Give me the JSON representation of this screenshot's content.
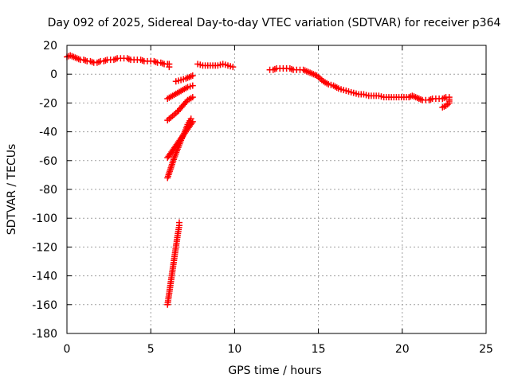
{
  "chart_data": {
    "type": "scatter",
    "title": "Day 092 of 2025, Sidereal Day-to-day VTEC variation (SDTVAR) for receiver p364",
    "xlabel": "GPS time / hours",
    "ylabel": "SDTVAR / TECUs",
    "xlim": [
      0,
      25
    ],
    "ylim": [
      -180,
      20
    ],
    "xticks": [
      0,
      5,
      10,
      15,
      20,
      25
    ],
    "yticks": [
      20,
      0,
      -20,
      -40,
      -60,
      -80,
      -100,
      -120,
      -140,
      -160,
      -180
    ],
    "grid": true,
    "marker": "plus",
    "color": "#ff0000",
    "series": [
      {
        "name": "segment-1",
        "points": [
          [
            0.0,
            12
          ],
          [
            0.2,
            13
          ],
          [
            0.4,
            12
          ],
          [
            0.6,
            11
          ],
          [
            0.8,
            10
          ],
          [
            1.0,
            10
          ],
          [
            1.2,
            9
          ],
          [
            1.4,
            9
          ],
          [
            1.6,
            8
          ],
          [
            1.8,
            8
          ],
          [
            2.0,
            9
          ],
          [
            2.2,
            9
          ],
          [
            2.4,
            10
          ],
          [
            2.6,
            10
          ],
          [
            2.8,
            10
          ],
          [
            3.0,
            11
          ],
          [
            3.2,
            11
          ],
          [
            3.4,
            11
          ],
          [
            3.6,
            11
          ],
          [
            3.8,
            10
          ],
          [
            4.0,
            10
          ],
          [
            4.2,
            10
          ],
          [
            4.4,
            10
          ],
          [
            4.6,
            9
          ],
          [
            4.8,
            9
          ],
          [
            5.0,
            9
          ],
          [
            5.2,
            9
          ],
          [
            5.4,
            8
          ],
          [
            5.6,
            8
          ],
          [
            5.8,
            7
          ],
          [
            6.0,
            7
          ],
          [
            6.1,
            7
          ],
          [
            6.1,
            5
          ]
        ]
      },
      {
        "name": "segment-2",
        "points": [
          [
            6.5,
            -5
          ],
          [
            6.8,
            -4
          ],
          [
            7.1,
            -3
          ],
          [
            7.3,
            -2
          ],
          [
            7.5,
            -1
          ]
        ]
      },
      {
        "name": "segment-3",
        "points": [
          [
            6.0,
            -17
          ],
          [
            6.3,
            -15
          ],
          [
            6.6,
            -13
          ],
          [
            6.9,
            -11
          ],
          [
            7.2,
            -9
          ],
          [
            7.5,
            -8
          ]
        ]
      },
      {
        "name": "segment-4",
        "points": [
          [
            6.0,
            -32
          ],
          [
            6.3,
            -29
          ],
          [
            6.6,
            -26
          ],
          [
            6.9,
            -22
          ],
          [
            7.2,
            -18
          ],
          [
            7.5,
            -16
          ]
        ]
      },
      {
        "name": "segment-5",
        "points": [
          [
            6.0,
            -58
          ],
          [
            6.3,
            -53
          ],
          [
            6.6,
            -48
          ],
          [
            6.9,
            -43
          ],
          [
            7.2,
            -38
          ],
          [
            7.5,
            -33
          ]
        ]
      },
      {
        "name": "segment-6",
        "points": [
          [
            6.0,
            -72
          ],
          [
            6.2,
            -65
          ],
          [
            6.4,
            -58
          ],
          [
            6.6,
            -52
          ],
          [
            6.8,
            -46
          ],
          [
            7.0,
            -41
          ],
          [
            7.2,
            -35
          ],
          [
            7.4,
            -31
          ]
        ]
      },
      {
        "name": "segment-7",
        "points": [
          [
            6.0,
            -160
          ],
          [
            6.1,
            -152
          ],
          [
            6.2,
            -144
          ],
          [
            6.3,
            -136
          ],
          [
            6.4,
            -128
          ],
          [
            6.5,
            -120
          ],
          [
            6.6,
            -112
          ],
          [
            6.7,
            -105
          ],
          [
            6.7,
            -103
          ]
        ]
      },
      {
        "name": "segment-8",
        "points": [
          [
            7.8,
            7
          ],
          [
            8.1,
            6
          ],
          [
            8.4,
            6
          ],
          [
            8.7,
            6
          ],
          [
            9.0,
            6
          ],
          [
            9.3,
            7
          ],
          [
            9.6,
            6
          ],
          [
            9.9,
            5
          ]
        ]
      },
      {
        "name": "segment-9",
        "points": [
          [
            12.1,
            3
          ],
          [
            12.3,
            3
          ],
          [
            12.5,
            4
          ],
          [
            12.7,
            4
          ],
          [
            12.9,
            4
          ],
          [
            13.1,
            4
          ],
          [
            13.3,
            4
          ],
          [
            13.5,
            3
          ],
          [
            13.7,
            3
          ],
          [
            13.9,
            3
          ],
          [
            14.1,
            3
          ],
          [
            14.3,
            2
          ],
          [
            14.5,
            1
          ],
          [
            14.7,
            0
          ],
          [
            14.9,
            -1
          ],
          [
            15.1,
            -3
          ],
          [
            15.3,
            -5
          ],
          [
            15.6,
            -7
          ],
          [
            15.9,
            -8
          ],
          [
            16.2,
            -10
          ],
          [
            16.5,
            -11
          ],
          [
            16.8,
            -12
          ],
          [
            17.1,
            -13
          ],
          [
            17.4,
            -14
          ],
          [
            17.7,
            -14
          ],
          [
            18.0,
            -15
          ],
          [
            18.3,
            -15
          ],
          [
            18.6,
            -15
          ],
          [
            18.9,
            -16
          ],
          [
            19.2,
            -16
          ],
          [
            19.5,
            -16
          ],
          [
            19.8,
            -16
          ],
          [
            20.1,
            -16
          ],
          [
            20.4,
            -16
          ],
          [
            20.6,
            -15
          ],
          [
            20.8,
            -16
          ],
          [
            21.0,
            -17
          ],
          [
            21.2,
            -18
          ],
          [
            21.4,
            -18
          ],
          [
            21.6,
            -18
          ],
          [
            21.8,
            -17
          ],
          [
            22.0,
            -17
          ],
          [
            22.2,
            -17
          ],
          [
            22.4,
            -17
          ],
          [
            22.6,
            -16
          ],
          [
            22.8,
            -16
          ],
          [
            22.8,
            -20
          ],
          [
            22.6,
            -22
          ],
          [
            22.4,
            -23
          ]
        ]
      }
    ]
  }
}
